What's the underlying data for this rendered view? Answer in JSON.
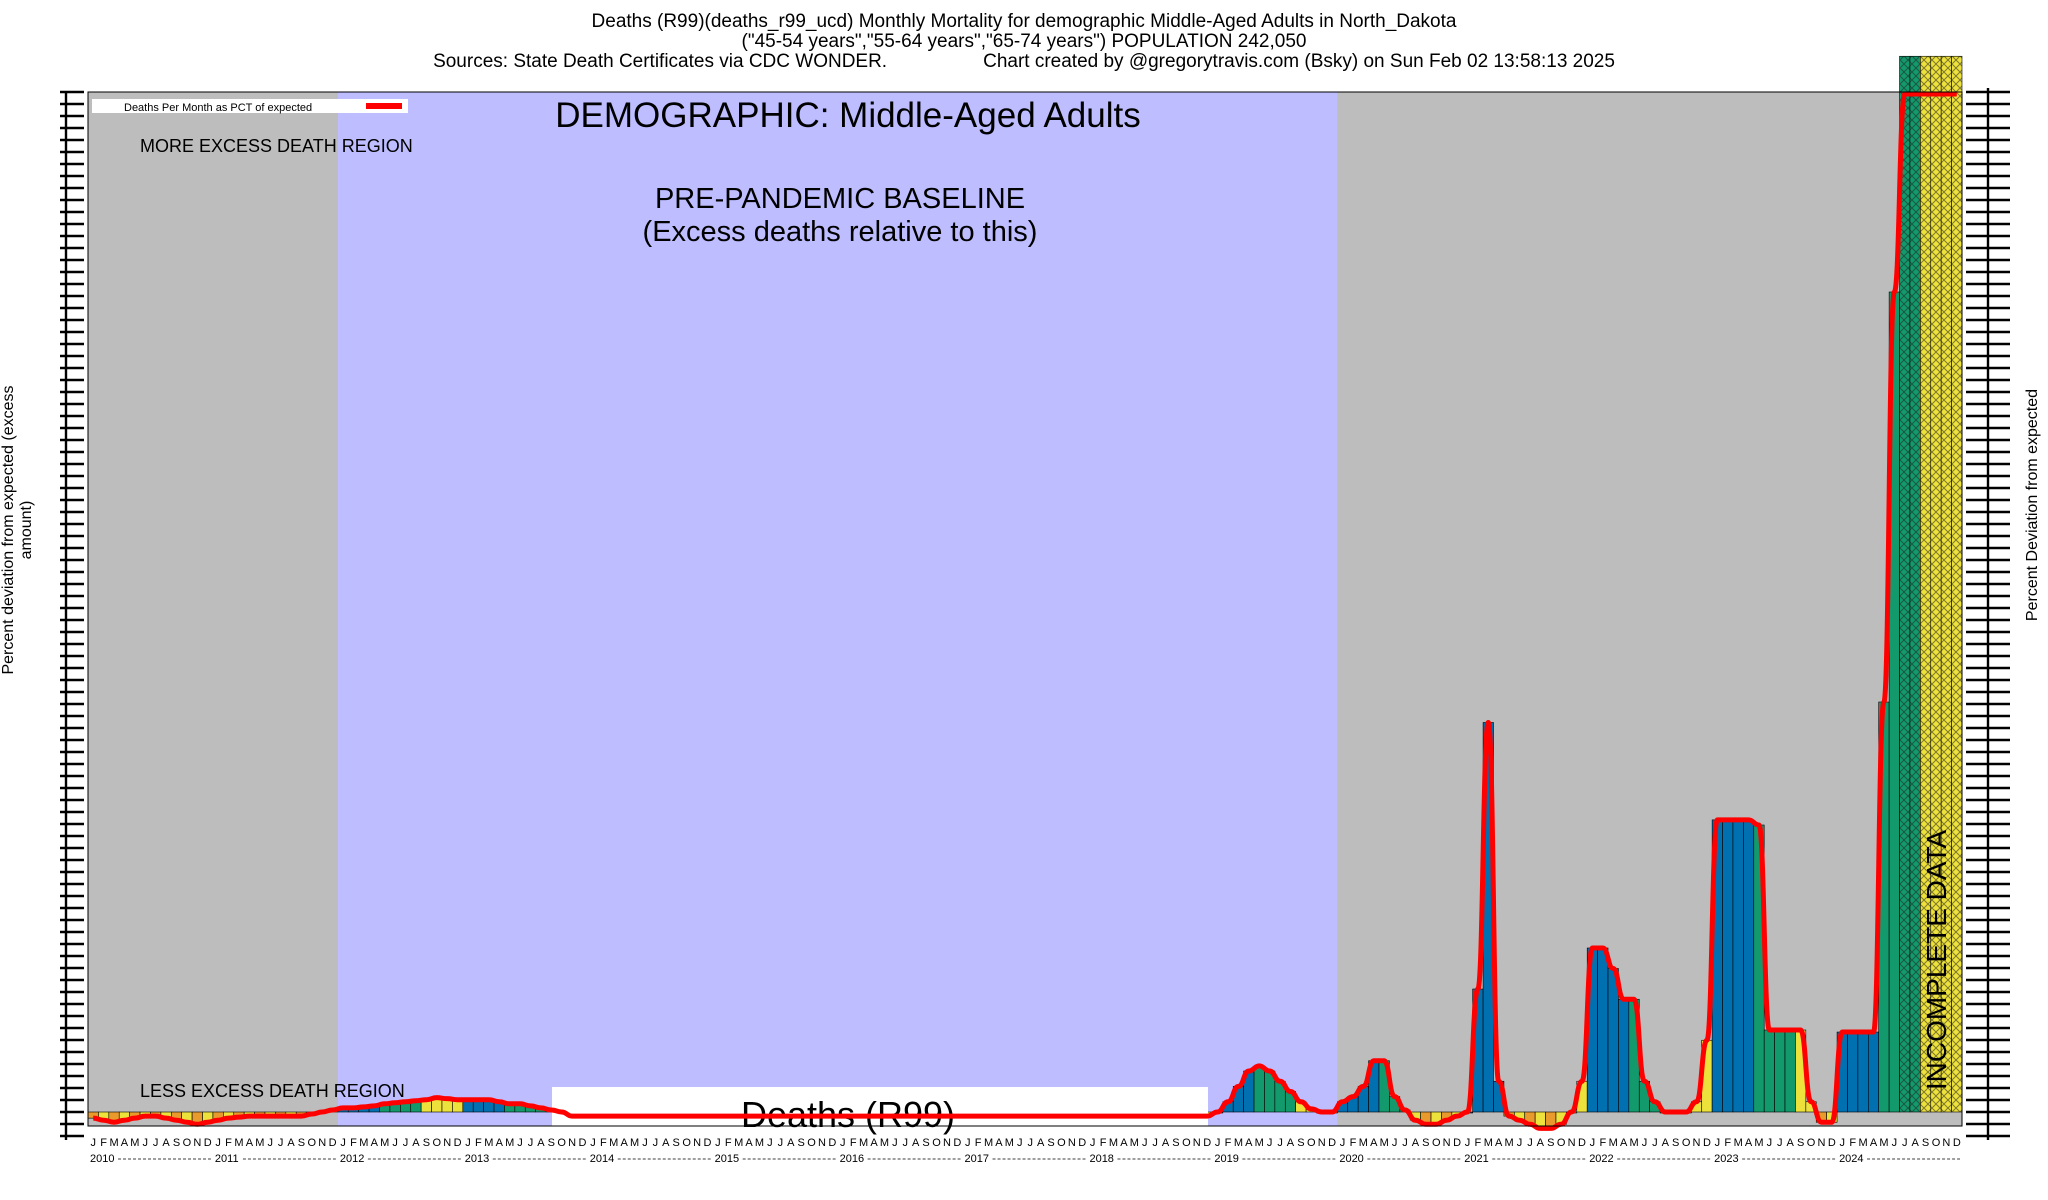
{
  "header": {
    "line1": "Deaths (R99)(deaths_r99_ucd) Monthly Mortality for demographic Middle-Aged Adults in North_Dakota",
    "line2": "(\"45-54 years\",\"55-64 years\",\"65-74 years\") POPULATION 242,050",
    "line3_source": "Sources: State Death Certificates via CDC WONDER.",
    "line3_credit": "Chart created by @gregorytravis.com (Bsky) on Sun Feb 02 13:58:13 2025"
  },
  "axes": {
    "left_title": "Percent deviation from expected (excess amount)",
    "right_title": "Percent Deviation from expected"
  },
  "legend": {
    "label": "Deaths Per Month as PCT of expected"
  },
  "annotations": {
    "demographic": "DEMOGRAPHIC: Middle-Aged Adults",
    "more_region": "MORE EXCESS DEATH REGION",
    "less_region": "LESS EXCESS DEATH REGION",
    "baseline_line1": "PRE-PANDEMIC BASELINE",
    "baseline_line2": "(Excess deaths relative to this)",
    "incomplete": "INCOMPLETE DATA",
    "cause_label": "Deaths (R99)"
  },
  "colors": {
    "more_region_bg": "#bdbdbd",
    "baseline_bg": "#bdbdff",
    "bar_blue": "#0070b0",
    "bar_green": "#139a6c",
    "bar_yellow": "#ede13c",
    "bar_orange": "#e89a2c",
    "line": "#ff0000"
  },
  "chart_data": {
    "type": "bar",
    "series": [
      {
        "name": "Deaths Per Month as PCT of expected",
        "style": "line"
      }
    ],
    "x_years": [
      "2010",
      "2011",
      "2012",
      "2013",
      "2014",
      "2015",
      "2016",
      "2017",
      "2018",
      "2019",
      "2020",
      "2021",
      "2022",
      "2023",
      "2024"
    ],
    "month_ticks": [
      "J",
      "F",
      "M",
      "A",
      "M",
      "J",
      "J",
      "A",
      "S",
      "O",
      "N",
      "D"
    ],
    "baseline_years": [
      "2012",
      "2013",
      "2014",
      "2015",
      "2016",
      "2017",
      "2018",
      "2019"
    ],
    "incomplete_months": [
      "2024-07",
      "2024-08",
      "2024-09",
      "2024-10",
      "2024-11",
      "2024-12"
    ],
    "ylim": [
      0,
      1000
    ],
    "monthly_values": [
      [
        "2010-01",
        -6
      ],
      [
        "2010-02",
        -8
      ],
      [
        "2010-03",
        -10
      ],
      [
        "2010-04",
        -8
      ],
      [
        "2010-05",
        -6
      ],
      [
        "2010-06",
        -4
      ],
      [
        "2010-07",
        -4
      ],
      [
        "2010-08",
        -6
      ],
      [
        "2010-09",
        -8
      ],
      [
        "2010-10",
        -10
      ],
      [
        "2010-11",
        -12
      ],
      [
        "2010-12",
        -10
      ],
      [
        "2011-01",
        -8
      ],
      [
        "2011-02",
        -6
      ],
      [
        "2011-03",
        -5
      ],
      [
        "2011-04",
        -4
      ],
      [
        "2011-05",
        -4
      ],
      [
        "2011-06",
        -4
      ],
      [
        "2011-07",
        -4
      ],
      [
        "2011-08",
        -4
      ],
      [
        "2011-09",
        -4
      ],
      [
        "2011-10",
        -2
      ],
      [
        "2011-11",
        0
      ],
      [
        "2011-12",
        2
      ],
      [
        "2012-01",
        4
      ],
      [
        "2012-02",
        4
      ],
      [
        "2012-03",
        5
      ],
      [
        "2012-04",
        6
      ],
      [
        "2012-05",
        8
      ],
      [
        "2012-06",
        9
      ],
      [
        "2012-07",
        10
      ],
      [
        "2012-08",
        11
      ],
      [
        "2012-09",
        12
      ],
      [
        "2012-10",
        14
      ],
      [
        "2012-11",
        13
      ],
      [
        "2012-12",
        12
      ],
      [
        "2013-01",
        12
      ],
      [
        "2013-02",
        12
      ],
      [
        "2013-03",
        12
      ],
      [
        "2013-04",
        10
      ],
      [
        "2013-05",
        8
      ],
      [
        "2013-06",
        8
      ],
      [
        "2013-07",
        6
      ],
      [
        "2013-08",
        4
      ],
      [
        "2013-09",
        2
      ],
      [
        "2013-10",
        0
      ],
      [
        "2013-11",
        -4
      ],
      [
        "2013-12",
        -4
      ],
      [
        "2014-01",
        -4
      ],
      [
        "2014-02",
        -4
      ],
      [
        "2014-03",
        -4
      ],
      [
        "2014-04",
        -4
      ],
      [
        "2014-05",
        -4
      ],
      [
        "2014-06",
        -4
      ],
      [
        "2014-07",
        -4
      ],
      [
        "2014-08",
        -4
      ],
      [
        "2014-09",
        -4
      ],
      [
        "2014-10",
        -4
      ],
      [
        "2014-11",
        -4
      ],
      [
        "2014-12",
        -4
      ],
      [
        "2015-01",
        -4
      ],
      [
        "2015-02",
        -4
      ],
      [
        "2015-03",
        -4
      ],
      [
        "2015-04",
        -4
      ],
      [
        "2015-05",
        -4
      ],
      [
        "2015-06",
        -4
      ],
      [
        "2015-07",
        -4
      ],
      [
        "2015-08",
        -4
      ],
      [
        "2015-09",
        -4
      ],
      [
        "2015-10",
        -4
      ],
      [
        "2015-11",
        -4
      ],
      [
        "2015-12",
        -4
      ],
      [
        "2016-01",
        -4
      ],
      [
        "2016-02",
        -4
      ],
      [
        "2016-03",
        -4
      ],
      [
        "2016-04",
        -4
      ],
      [
        "2016-05",
        -4
      ],
      [
        "2016-06",
        -4
      ],
      [
        "2016-07",
        -4
      ],
      [
        "2016-08",
        -4
      ],
      [
        "2016-09",
        -4
      ],
      [
        "2016-10",
        -4
      ],
      [
        "2016-11",
        -4
      ],
      [
        "2016-12",
        -4
      ],
      [
        "2017-01",
        -4
      ],
      [
        "2017-02",
        -4
      ],
      [
        "2017-03",
        -4
      ],
      [
        "2017-04",
        -4
      ],
      [
        "2017-05",
        -4
      ],
      [
        "2017-06",
        -4
      ],
      [
        "2017-07",
        -4
      ],
      [
        "2017-08",
        -4
      ],
      [
        "2017-09",
        -4
      ],
      [
        "2017-10",
        -4
      ],
      [
        "2017-11",
        -4
      ],
      [
        "2017-12",
        -4
      ],
      [
        "2018-01",
        -4
      ],
      [
        "2018-02",
        -4
      ],
      [
        "2018-03",
        -4
      ],
      [
        "2018-04",
        -4
      ],
      [
        "2018-05",
        -4
      ],
      [
        "2018-06",
        -4
      ],
      [
        "2018-07",
        -4
      ],
      [
        "2018-08",
        -4
      ],
      [
        "2018-09",
        -4
      ],
      [
        "2018-10",
        -4
      ],
      [
        "2018-11",
        -4
      ],
      [
        "2018-12",
        -4
      ],
      [
        "2019-01",
        0
      ],
      [
        "2019-02",
        10
      ],
      [
        "2019-03",
        25
      ],
      [
        "2019-04",
        40
      ],
      [
        "2019-05",
        45
      ],
      [
        "2019-06",
        40
      ],
      [
        "2019-07",
        30
      ],
      [
        "2019-08",
        20
      ],
      [
        "2019-09",
        10
      ],
      [
        "2019-10",
        3
      ],
      [
        "2019-11",
        0
      ],
      [
        "2019-12",
        0
      ],
      [
        "2020-01",
        10
      ],
      [
        "2020-02",
        15
      ],
      [
        "2020-03",
        25
      ],
      [
        "2020-04",
        50
      ],
      [
        "2020-05",
        50
      ],
      [
        "2020-06",
        15
      ],
      [
        "2020-07",
        2
      ],
      [
        "2020-08",
        -8
      ],
      [
        "2020-09",
        -12
      ],
      [
        "2020-10",
        -12
      ],
      [
        "2020-11",
        -8
      ],
      [
        "2020-12",
        -4
      ],
      [
        "2021-01",
        0
      ],
      [
        "2021-02",
        120
      ],
      [
        "2021-03",
        380
      ],
      [
        "2021-04",
        30
      ],
      [
        "2021-05",
        -4
      ],
      [
        "2021-06",
        -8
      ],
      [
        "2021-07",
        -12
      ],
      [
        "2021-08",
        -16
      ],
      [
        "2021-09",
        -16
      ],
      [
        "2021-10",
        -12
      ],
      [
        "2021-11",
        0
      ],
      [
        "2021-12",
        30
      ],
      [
        "2022-01",
        160
      ],
      [
        "2022-02",
        160
      ],
      [
        "2022-03",
        140
      ],
      [
        "2022-04",
        110
      ],
      [
        "2022-05",
        110
      ],
      [
        "2022-06",
        30
      ],
      [
        "2022-07",
        10
      ],
      [
        "2022-08",
        0
      ],
      [
        "2022-09",
        0
      ],
      [
        "2022-10",
        0
      ],
      [
        "2022-11",
        10
      ],
      [
        "2022-12",
        70
      ],
      [
        "2023-01",
        285
      ],
      [
        "2023-02",
        285
      ],
      [
        "2023-03",
        285
      ],
      [
        "2023-04",
        285
      ],
      [
        "2023-05",
        280
      ],
      [
        "2023-06",
        80
      ],
      [
        "2023-07",
        80
      ],
      [
        "2023-08",
        80
      ],
      [
        "2023-09",
        80
      ],
      [
        "2023-10",
        10
      ],
      [
        "2023-11",
        -10
      ],
      [
        "2023-12",
        -10
      ],
      [
        "2024-01",
        78
      ],
      [
        "2024-02",
        78
      ],
      [
        "2024-03",
        78
      ],
      [
        "2024-04",
        78
      ],
      [
        "2024-05",
        400
      ],
      [
        "2024-06",
        800
      ],
      [
        "2024-07",
        1030
      ],
      [
        "2024-08",
        1030
      ],
      [
        "2024-09",
        1030
      ],
      [
        "2024-10",
        1030
      ],
      [
        "2024-11",
        1030
      ],
      [
        "2024-12",
        1030
      ]
    ]
  }
}
